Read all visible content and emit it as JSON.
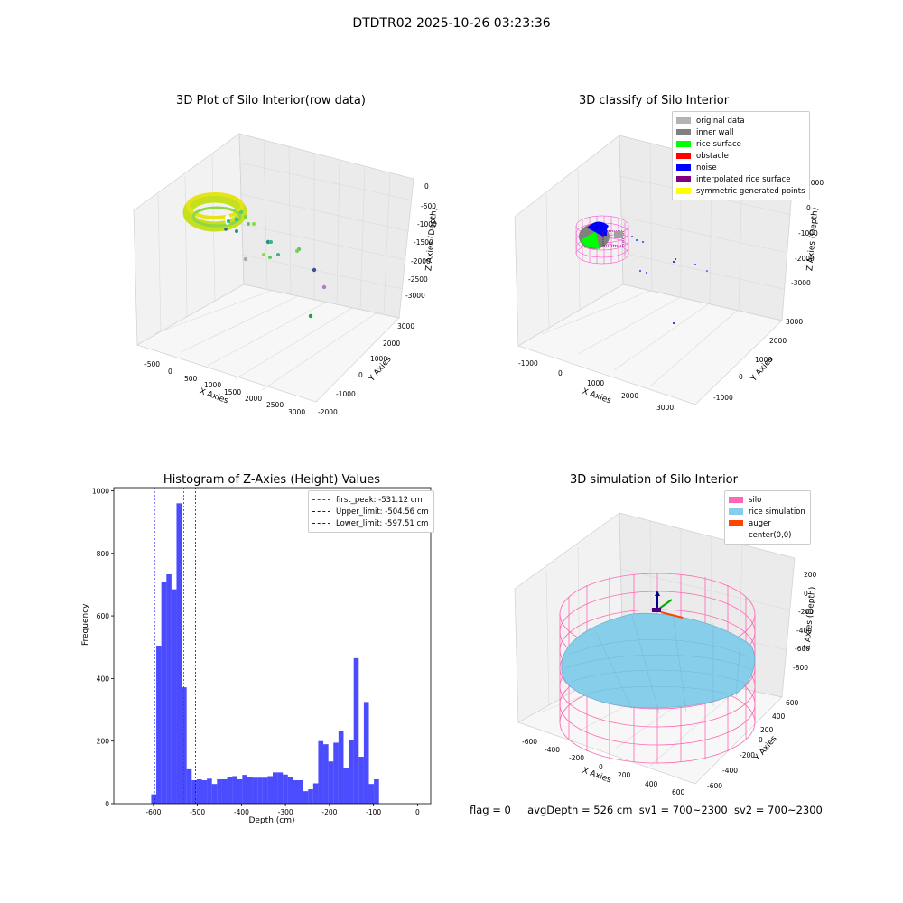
{
  "figure": {
    "suptitle": "DTDTR02 2025-10-26 03:23:36",
    "status_line": {
      "flag": "flag = 0",
      "avg_depth": "avgDepth = 526 cm",
      "sv1": "sv1 = 700~2300",
      "sv2": "sv2 = 700~2300"
    }
  },
  "chart_data": [
    {
      "type": "scatter",
      "title": "3D Plot of Silo Interior(row data)",
      "xlabel": "X Axies",
      "ylabel": "Y Axies",
      "zlabel": "Z Axies (Depth)",
      "x_ticks": [
        "-500",
        "0",
        "500",
        "1000",
        "1500",
        "2000",
        "2500",
        "3000"
      ],
      "y_ticks": [
        "-2000",
        "-1000",
        "0",
        "1000",
        "2000",
        "3000"
      ],
      "z_ticks": [
        "0",
        "-500",
        "-1000",
        "-1500",
        "-2000",
        "-2500",
        "-3000"
      ],
      "colormap": "viridis"
    },
    {
      "type": "scatter",
      "title": "3D classify of Silo Interior",
      "xlabel": "X Axies",
      "ylabel": "Y Axies",
      "zlabel": "Z Axies (Depth)",
      "x_ticks": [
        "-1000",
        "0",
        "1000",
        "2000",
        "3000"
      ],
      "y_ticks": [
        "-1000",
        "0",
        "1000",
        "2000",
        "3000"
      ],
      "z_ticks": [
        "1000",
        "0",
        "-1000",
        "-2000",
        "-3000"
      ],
      "legend": [
        {
          "name": "original data",
          "color": "#b3b3b3"
        },
        {
          "name": "inner wall",
          "color": "#808080"
        },
        {
          "name": "rice surface",
          "color": "#00ff00"
        },
        {
          "name": "obstacle",
          "color": "#ff0000"
        },
        {
          "name": "noise",
          "color": "#0000ff"
        },
        {
          "name": "interpolated rice surface",
          "color": "#800080"
        },
        {
          "name": "symmetric generated points",
          "color": "#ffff00"
        }
      ]
    },
    {
      "type": "bar",
      "title": "Histogram of Z-Axies (Height) Values",
      "xlabel": "Depth (cm)",
      "ylabel": "Frequency",
      "xlim": [
        -690,
        30
      ],
      "ylim": [
        0,
        1010
      ],
      "x_ticks": [
        -600,
        -500,
        -400,
        -300,
        -200,
        -100,
        0
      ],
      "y_ticks": [
        0,
        200,
        400,
        600,
        800,
        1000
      ],
      "bar_color": "#0000ff",
      "bin_width": 11.5,
      "bins": [
        {
          "x": -605,
          "count": 30
        },
        {
          "x": -593.5,
          "count": 505
        },
        {
          "x": -582,
          "count": 710
        },
        {
          "x": -570.5,
          "count": 733
        },
        {
          "x": -559,
          "count": 685
        },
        {
          "x": -547.5,
          "count": 960
        },
        {
          "x": -536,
          "count": 372
        },
        {
          "x": -524.5,
          "count": 110
        },
        {
          "x": -513,
          "count": 75
        },
        {
          "x": -501.5,
          "count": 78
        },
        {
          "x": -490,
          "count": 75
        },
        {
          "x": -478.5,
          "count": 80
        },
        {
          "x": -467,
          "count": 63
        },
        {
          "x": -455.5,
          "count": 78
        },
        {
          "x": -444,
          "count": 78
        },
        {
          "x": -432.5,
          "count": 85
        },
        {
          "x": -421,
          "count": 88
        },
        {
          "x": -409.5,
          "count": 78
        },
        {
          "x": -398,
          "count": 92
        },
        {
          "x": -386.5,
          "count": 85
        },
        {
          "x": -375,
          "count": 83
        },
        {
          "x": -363.5,
          "count": 83
        },
        {
          "x": -352,
          "count": 83
        },
        {
          "x": -340.5,
          "count": 88
        },
        {
          "x": -329,
          "count": 100
        },
        {
          "x": -317.5,
          "count": 100
        },
        {
          "x": -306,
          "count": 93
        },
        {
          "x": -294.5,
          "count": 85
        },
        {
          "x": -283,
          "count": 75
        },
        {
          "x": -271.5,
          "count": 75
        },
        {
          "x": -260,
          "count": 40
        },
        {
          "x": -248.5,
          "count": 46
        },
        {
          "x": -237,
          "count": 65
        },
        {
          "x": -225.5,
          "count": 200
        },
        {
          "x": -214,
          "count": 190
        },
        {
          "x": -202.5,
          "count": 135
        },
        {
          "x": -191,
          "count": 195
        },
        {
          "x": -179.5,
          "count": 233
        },
        {
          "x": -168,
          "count": 115
        },
        {
          "x": -156.5,
          "count": 205
        },
        {
          "x": -145,
          "count": 465
        },
        {
          "x": -133.5,
          "count": 150
        },
        {
          "x": -122,
          "count": 325
        },
        {
          "x": -110.5,
          "count": 63
        },
        {
          "x": -99,
          "count": 78
        }
      ],
      "vlines": [
        {
          "name": "first_peak: -531.12 cm",
          "x": -531.12,
          "color": "#ff0000"
        },
        {
          "name": "Upper_limit: -504.56 cm",
          "x": -504.56,
          "color": "#0000ff"
        },
        {
          "name": "Lower_limit: -597.51 cm",
          "x": -597.51,
          "color": "#0000ff"
        }
      ]
    },
    {
      "type": "scatter",
      "title": "3D simulation of Silo Interior",
      "xlabel": "X Axies",
      "ylabel": "Y Axies",
      "zlabel": "Z Axies (Depth)",
      "x_ticks": [
        "-600",
        "-400",
        "-200",
        "0",
        "200",
        "400",
        "600"
      ],
      "y_ticks": [
        "-600",
        "-400",
        "-200",
        "0",
        "200",
        "400",
        "600"
      ],
      "z_ticks": [
        "200",
        "0",
        "-200",
        "-400",
        "-600",
        "-800"
      ],
      "legend": [
        {
          "name": "silo",
          "color": "#ff69b4"
        },
        {
          "name": "rice simulation",
          "color": "#87ceeb"
        },
        {
          "name": "auger",
          "color": "#ff4500"
        },
        {
          "name": "center(0,0)",
          "color": ""
        }
      ]
    }
  ]
}
